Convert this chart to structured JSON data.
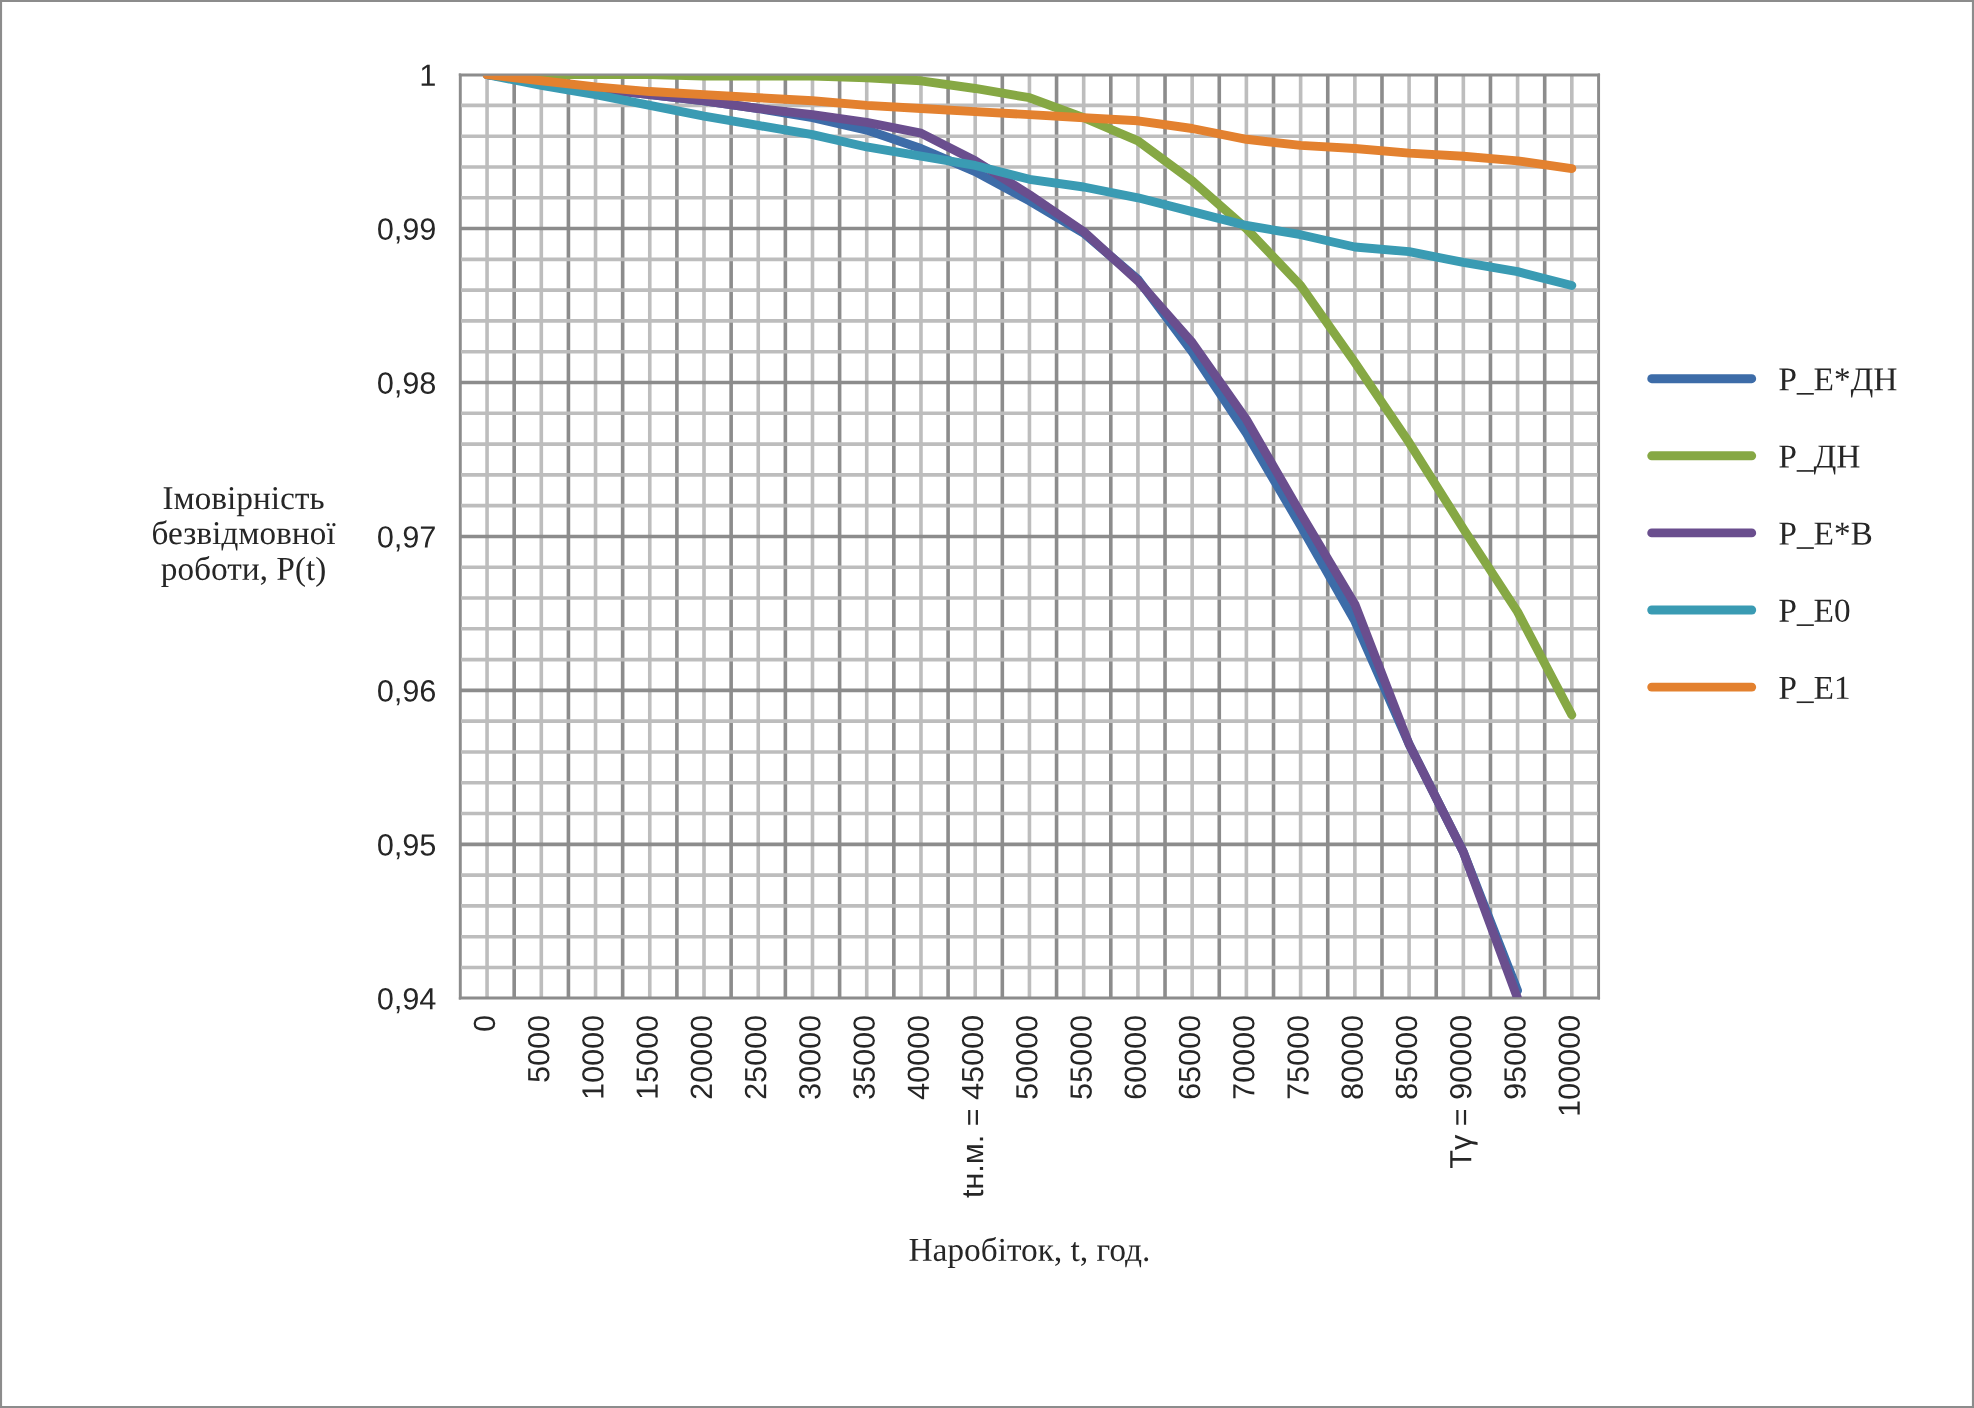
{
  "chart_data": {
    "type": "line",
    "xlabel": "Наробіток, t, год.",
    "ylabel": "Імовірність\nбезвідмовної\nроботи, P(t)",
    "categories": [
      "0",
      "5000",
      "10000",
      "15000",
      "20000",
      "25000",
      "30000",
      "35000",
      "40000",
      "tн.м. = 45000",
      "50000",
      "55000",
      "60000",
      "65000",
      "70000",
      "75000",
      "80000",
      "85000",
      "Tγ = 90000",
      "95000",
      "100000"
    ],
    "series": [
      {
        "name": "P_E*ДН",
        "color": "#3d6ca8",
        "values": [
          1.0,
          0.9995,
          0.9991,
          0.9987,
          0.9983,
          0.9978,
          0.9972,
          0.9964,
          0.9952,
          0.9937,
          0.9918,
          0.9897,
          0.9867,
          0.982,
          0.9767,
          0.9707,
          0.9645,
          0.9565,
          0.9495,
          0.9405,
          null
        ]
      },
      {
        "name": "P_ДН",
        "color": "#86a844",
        "values": [
          1.0,
          1.0,
          1.0,
          1.0,
          0.9999,
          0.9999,
          0.9999,
          0.9998,
          0.9996,
          0.9991,
          0.9985,
          0.9972,
          0.9957,
          0.9931,
          0.99,
          0.9863,
          0.9813,
          0.9761,
          0.9705,
          0.9651,
          0.9584
        ]
      },
      {
        "name": "P_E*В",
        "color": "#6a4e8e",
        "values": [
          1.0,
          0.9995,
          0.9991,
          0.9987,
          0.9983,
          0.9978,
          0.9974,
          0.9969,
          0.9962,
          0.9944,
          0.9922,
          0.9898,
          0.9866,
          0.9826,
          0.9776,
          0.9715,
          0.9656,
          0.9565,
          0.9495,
          0.94,
          null
        ]
      },
      {
        "name": "P_E0",
        "color": "#3a9bb3",
        "values": [
          1.0,
          0.9993,
          0.9987,
          0.998,
          0.9973,
          0.9967,
          0.9961,
          0.9953,
          0.9947,
          0.9941,
          0.9932,
          0.9927,
          0.992,
          0.9911,
          0.9902,
          0.9896,
          0.9888,
          0.9885,
          0.9878,
          0.9872,
          0.9863
        ]
      },
      {
        "name": "P_E1",
        "color": "#e3812f",
        "values": [
          1.0,
          0.9996,
          0.9992,
          0.9989,
          0.9987,
          0.9985,
          0.9983,
          0.998,
          0.9978,
          0.9976,
          0.9974,
          0.9972,
          0.997,
          0.9965,
          0.9958,
          0.9954,
          0.9952,
          0.9949,
          0.9947,
          0.9944,
          0.9939
        ]
      }
    ],
    "ylim": [
      0.94,
      1
    ],
    "yticks": [
      {
        "value": 0.94,
        "label": "0,94"
      },
      {
        "value": 0.95,
        "label": "0,95"
      },
      {
        "value": 0.96,
        "label": "0,96"
      },
      {
        "value": 0.97,
        "label": "0,97"
      },
      {
        "value": 0.98,
        "label": "0,98"
      },
      {
        "value": 0.99,
        "label": "0,99"
      },
      {
        "value": 1,
        "label": "1"
      }
    ],
    "grid": true,
    "legend": "right",
    "marker": "none",
    "line_style": "solid"
  }
}
